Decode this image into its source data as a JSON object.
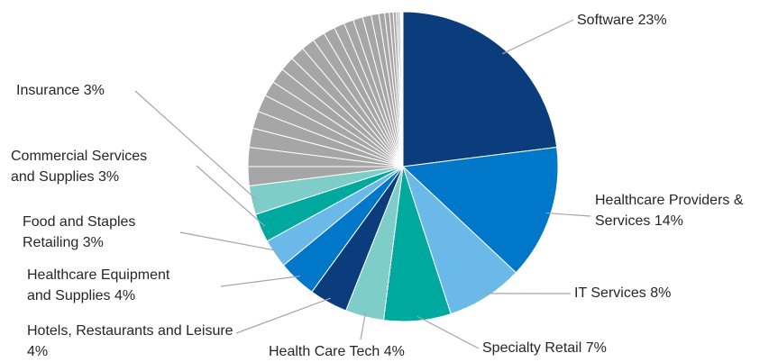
{
  "chart_data": {
    "type": "pie",
    "categories": [
      "Software",
      "Healthcare Providers & Services",
      "IT Services",
      "Specialty Retail",
      "Health Care Tech",
      "Hotels, Restaurants and Leisure",
      "Healthcare Equipment and Supplies",
      "Food and Staples Retailing",
      "Commercial Services and Supplies",
      "Insurance",
      null,
      null,
      null,
      null,
      null,
      null,
      null,
      null,
      null,
      null,
      null,
      null,
      null,
      null,
      null,
      null,
      null,
      null,
      null,
      null,
      null,
      null,
      null,
      null,
      null,
      null
    ],
    "values": [
      23,
      14,
      8,
      7,
      4,
      4,
      4,
      3,
      3,
      3,
      2,
      2,
      2,
      1.8,
      1.8,
      1.6,
      1.6,
      1.5,
      1.5,
      1.4,
      1.3,
      1.2,
      1.1,
      1,
      1,
      0.9,
      0.8,
      0.6,
      0.5,
      0.4,
      0.3,
      0.2,
      0.2,
      0.1,
      0.1,
      0.1
    ],
    "value_labels": [
      "23%",
      "14%",
      "8%",
      "7%",
      "4%",
      "4%",
      "4%",
      "3%",
      "3%",
      "3%",
      null,
      null,
      null,
      null,
      null,
      null,
      null,
      null,
      null,
      null,
      null,
      null,
      null,
      null,
      null,
      null,
      null,
      null,
      null,
      null,
      null,
      null,
      null,
      null,
      null,
      null
    ],
    "colors": [
      "#0b3d7c",
      "#0077c8",
      "#6ab9e8",
      "#00a99d",
      "#7fcdc8",
      "#0b3d7c",
      "#0077c8",
      "#6ab9e8",
      "#00a99d",
      "#7fcdc8",
      "#a6a6a6",
      "#a6a6a6",
      "#a6a6a6",
      "#a6a6a6",
      "#a6a6a6",
      "#a6a6a6",
      "#a6a6a6",
      "#a6a6a6",
      "#a6a6a6",
      "#a6a6a6",
      "#a6a6a6",
      "#a6a6a6",
      "#a6a6a6",
      "#a6a6a6",
      "#a6a6a6",
      "#a6a6a6",
      "#a6a6a6",
      "#a6a6a6",
      "#a6a6a6",
      "#a6a6a6",
      "#a6a6a6",
      "#a6a6a6",
      "#a6a6a6",
      "#a6a6a6",
      "#a6a6a6",
      "#a6a6a6"
    ]
  }
}
